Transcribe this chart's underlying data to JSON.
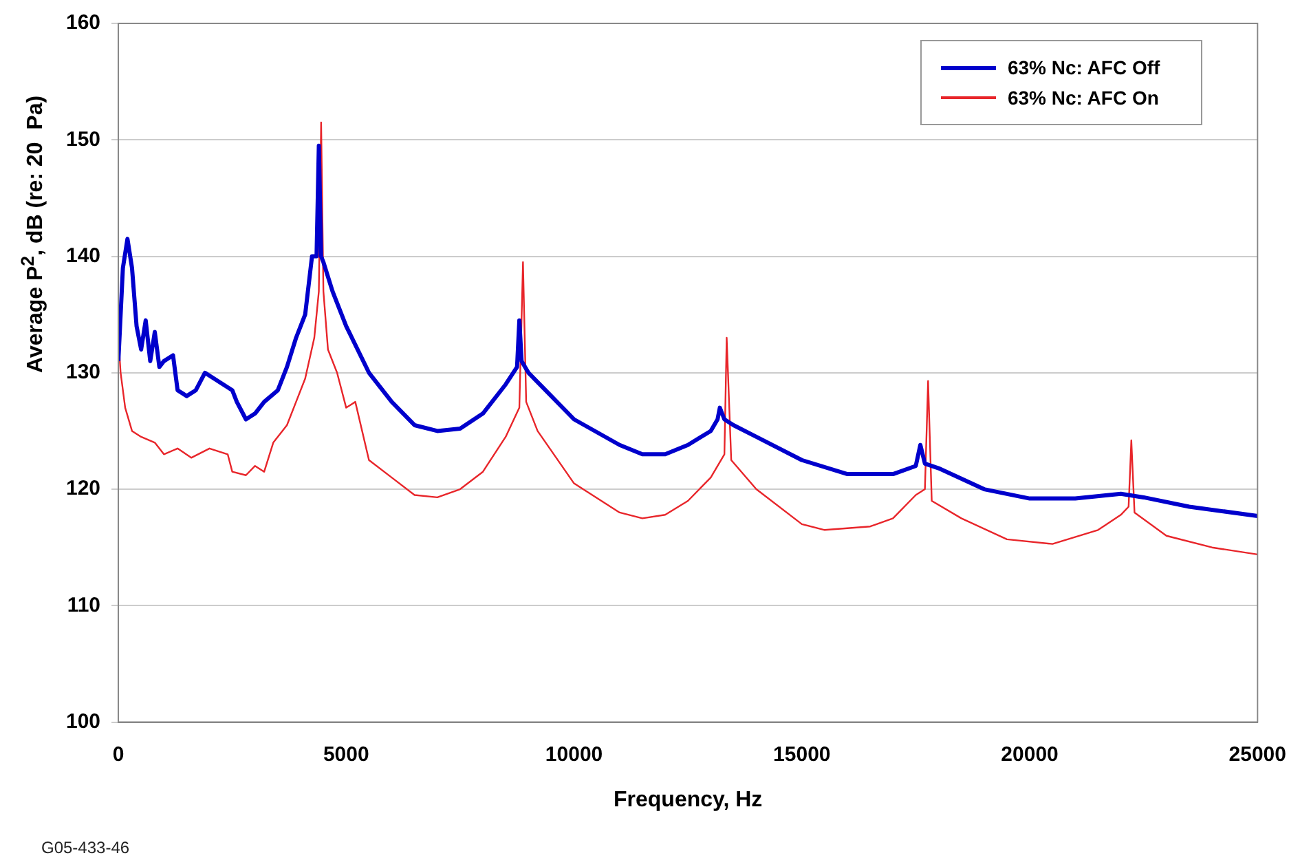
{
  "chart_data": {
    "type": "line",
    "xlabel": "Frequency, Hz",
    "ylabel": "Average P$^{2}$, dB (re: 20  Pa)",
    "annotations": [
      "G05-433-46"
    ],
    "xlim": [
      0,
      25000
    ],
    "xticks": [
      0,
      5000,
      10000,
      15000,
      20000,
      25000
    ],
    "ylim": [
      100,
      160
    ],
    "yticks": [
      100,
      110,
      120,
      130,
      140,
      150,
      160
    ],
    "grid": "y",
    "legend": "top right",
    "marker": "none",
    "line_style": "solid",
    "series": [
      {
        "name": "63% Nc: AFC Off",
        "color": "#0000cc",
        "x": [
          0,
          100,
          200,
          300,
          400,
          500,
          600,
          700,
          800,
          900,
          1000,
          1200,
          1300,
          1500,
          1700,
          1900,
          2100,
          2300,
          2500,
          2600,
          2800,
          3000,
          3200,
          3500,
          3700,
          3900,
          4100,
          4250,
          4350,
          4400,
          4450,
          4500,
          4700,
          5000,
          5500,
          6000,
          6500,
          7000,
          7500,
          8000,
          8500,
          8750,
          8800,
          8850,
          9000,
          9500,
          10000,
          11000,
          11500,
          12000,
          12500,
          13000,
          13150,
          13200,
          13300,
          13500,
          14000,
          15000,
          16000,
          17000,
          17500,
          17600,
          17700,
          18000,
          19000,
          20000,
          21000,
          22000,
          22500,
          23500,
          25000
        ],
        "values": [
          131,
          139,
          141.5,
          139,
          134,
          132,
          134.5,
          131,
          133.5,
          130.5,
          131,
          131.5,
          128.5,
          128,
          128.5,
          130,
          129.5,
          129,
          128.5,
          127.5,
          126,
          126.5,
          127.5,
          128.5,
          130.5,
          133,
          135,
          140,
          140,
          149.5,
          140,
          139.5,
          137,
          134,
          130,
          127.5,
          125.5,
          125,
          125.2,
          126.5,
          129,
          130.5,
          134.5,
          131,
          130,
          128,
          126,
          123.8,
          123,
          123,
          123.8,
          125,
          126,
          127,
          126,
          125.5,
          124.5,
          122.5,
          121.3,
          121.3,
          122,
          123.8,
          122.2,
          121.8,
          120,
          119.2,
          119.2,
          119.6,
          119.3,
          118.5,
          117.7
        ]
      },
      {
        "name": "63% Nc: AFC On",
        "color": "#e8252a",
        "x": [
          0,
          50,
          150,
          300,
          500,
          800,
          1000,
          1300,
          1600,
          2000,
          2400,
          2500,
          2800,
          3000,
          3200,
          3400,
          3700,
          3900,
          4100,
          4300,
          4400,
          4450,
          4500,
          4600,
          4800,
          5000,
          5200,
          5500,
          6000,
          6500,
          7000,
          7500,
          8000,
          8500,
          8800,
          8880,
          8950,
          9200,
          10000,
          11000,
          11500,
          12000,
          12500,
          13000,
          13300,
          13350,
          13450,
          14000,
          15000,
          15500,
          16500,
          17000,
          17500,
          17700,
          17770,
          17850,
          18500,
          19500,
          20500,
          21500,
          22000,
          22170,
          22230,
          22300,
          23000,
          24000,
          25000
        ],
        "values": [
          133,
          130,
          127,
          125,
          124.5,
          124,
          123,
          123.5,
          122.7,
          123.5,
          123,
          121.5,
          121.2,
          122,
          121.5,
          124,
          125.5,
          127.5,
          129.5,
          133,
          137,
          151.5,
          137,
          132,
          130,
          127,
          127.5,
          122.5,
          121,
          119.5,
          119.3,
          120,
          121.5,
          124.5,
          127,
          139.5,
          127.5,
          125,
          120.5,
          118,
          117.5,
          117.8,
          119,
          121,
          123,
          133,
          122.5,
          120,
          117,
          116.5,
          116.8,
          117.5,
          119.5,
          120,
          129.3,
          119,
          117.5,
          115.7,
          115.3,
          116.5,
          117.8,
          118.5,
          124.2,
          118,
          116,
          115,
          114.4
        ]
      }
    ]
  }
}
